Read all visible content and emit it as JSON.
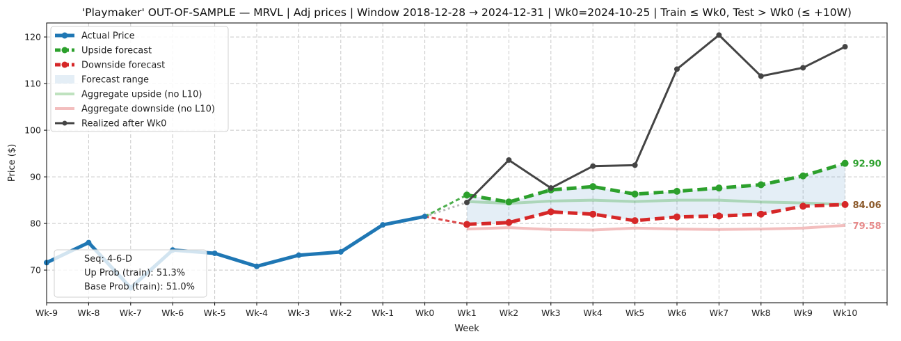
{
  "chart_data": {
    "type": "line",
    "title": "'Playmaker' OUT-OF-SAMPLE — MRVL  |  Adj prices  |  Window 2018-12-28 → 2024-12-31  |  Wk0=2024-10-25  |  Train ≤ Wk0, Test > Wk0 (≤ +10W)",
    "xlabel": "Week",
    "ylabel": "Price ($)",
    "categories": [
      "Wk-9",
      "Wk-8",
      "Wk-7",
      "Wk-6",
      "Wk-5",
      "Wk-4",
      "Wk-3",
      "Wk-2",
      "Wk-1",
      "Wk0",
      "Wk1",
      "Wk2",
      "Wk3",
      "Wk4",
      "Wk5",
      "Wk6",
      "Wk7",
      "Wk8",
      "Wk9",
      "Wk10"
    ],
    "ylim": [
      63,
      123
    ],
    "yticks": [
      70,
      80,
      90,
      100,
      110,
      120
    ],
    "grid": true,
    "legend_position": "upper-left",
    "series": [
      {
        "name": "Actual Price",
        "color": "#1f77b4",
        "x": [
          "Wk-9",
          "Wk-8",
          "Wk-7",
          "Wk-6",
          "Wk-5",
          "Wk-4",
          "Wk-3",
          "Wk-2",
          "Wk-1",
          "Wk0"
        ],
        "values": [
          71.6,
          75.9,
          66.2,
          74.3,
          73.6,
          70.8,
          73.2,
          73.9,
          79.7,
          81.5
        ]
      },
      {
        "name": "Upside forecast",
        "color": "#2ca02c",
        "x": [
          "Wk1",
          "Wk2",
          "Wk3",
          "Wk4",
          "Wk5",
          "Wk6",
          "Wk7",
          "Wk8",
          "Wk9",
          "Wk10"
        ],
        "values": [
          86.1,
          84.6,
          87.2,
          87.9,
          86.3,
          86.9,
          87.6,
          88.3,
          90.2,
          92.9
        ]
      },
      {
        "name": "Downside forecast",
        "color": "#d62728",
        "x": [
          "Wk1",
          "Wk2",
          "Wk3",
          "Wk4",
          "Wk5",
          "Wk6",
          "Wk7",
          "Wk8",
          "Wk9",
          "Wk10"
        ],
        "values": [
          79.8,
          80.2,
          82.5,
          82.0,
          80.6,
          81.4,
          81.6,
          82.0,
          83.7,
          84.06
        ]
      },
      {
        "name": "Forecast range",
        "color": "#1f77b4"
      },
      {
        "name": "Aggregate upside (no L10)",
        "color": "#2ca02c",
        "x": [
          "Wk1",
          "Wk2",
          "Wk3",
          "Wk4",
          "Wk5",
          "Wk6",
          "Wk7",
          "Wk8",
          "Wk9",
          "Wk10"
        ],
        "values": [
          84.7,
          84.3,
          84.8,
          85.0,
          84.7,
          85.0,
          85.0,
          84.6,
          84.4,
          84.06
        ]
      },
      {
        "name": "Aggregate downside (no L10)",
        "color": "#d62728",
        "x": [
          "Wk1",
          "Wk2",
          "Wk3",
          "Wk4",
          "Wk5",
          "Wk6",
          "Wk7",
          "Wk8",
          "Wk9",
          "Wk10"
        ],
        "values": [
          78.8,
          79.1,
          78.7,
          78.6,
          79.0,
          78.8,
          78.7,
          78.8,
          79.0,
          79.58
        ]
      },
      {
        "name": "Realized after Wk0",
        "color": "#444444",
        "x": [
          "Wk1",
          "Wk2",
          "Wk3",
          "Wk4",
          "Wk5",
          "Wk6",
          "Wk7",
          "Wk8",
          "Wk9",
          "Wk10"
        ],
        "values": [
          84.5,
          93.6,
          87.6,
          92.3,
          92.5,
          113.1,
          120.4,
          111.6,
          113.4,
          117.9
        ]
      }
    ],
    "end_labels": [
      {
        "text": "92.90",
        "value": 92.9,
        "color": "#2ca02c"
      },
      {
        "text": "84.06",
        "value": 84.06,
        "color": "#8c5a2b"
      },
      {
        "text": "79.58",
        "value": 79.58,
        "color": "#e88a8a"
      }
    ],
    "info_box": [
      "Seq: 4-6-D",
      "Up Prob (train): 51.3%",
      "Base Prob (train): 51.0%"
    ]
  }
}
